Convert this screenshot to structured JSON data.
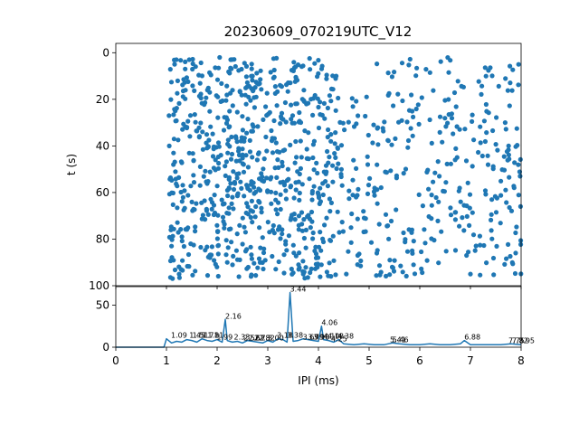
{
  "chart_data": [
    {
      "type": "scatter",
      "title": "20230609_070219UTC_V12",
      "xlabel": "",
      "ylabel": "t (s)",
      "xlim": [
        0,
        8
      ],
      "ylim": [
        100,
        -4
      ],
      "y_inverted": true,
      "y_ticks": [
        0,
        20,
        40,
        60,
        80,
        100
      ],
      "x_tick_labels_shown": false,
      "grid": false,
      "color": "#1f77b4",
      "dense_regions": [
        {
          "x_range": [
            1.05,
            4.4
          ],
          "y_range": [
            2,
            97
          ],
          "count": 720
        },
        {
          "x_range": [
            4.4,
            8.0
          ],
          "y_range": [
            2,
            96
          ],
          "count": 330
        }
      ],
      "sample_points": [
        {
          "x": 1.05,
          "y": 27
        },
        {
          "x": 1.1,
          "y": 83
        },
        {
          "x": 1.15,
          "y": 37
        },
        {
          "x": 1.25,
          "y": 95
        },
        {
          "x": 1.45,
          "y": 3
        },
        {
          "x": 2.05,
          "y": 2
        },
        {
          "x": 2.2,
          "y": 90
        },
        {
          "x": 3.4,
          "y": 50
        },
        {
          "x": 3.7,
          "y": 95
        },
        {
          "x": 4.35,
          "y": 10
        },
        {
          "x": 4.55,
          "y": 95
        },
        {
          "x": 5.85,
          "y": 85
        },
        {
          "x": 7.0,
          "y": 95
        },
        {
          "x": 7.95,
          "y": 5
        },
        {
          "x": 7.98,
          "y": 53
        }
      ]
    },
    {
      "type": "line",
      "title": "",
      "xlabel": "IPI (ms)",
      "ylabel": "",
      "xlim": [
        0,
        8
      ],
      "ylim": [
        0,
        72
      ],
      "x_ticks": [
        0,
        1,
        2,
        3,
        4,
        5,
        6,
        7,
        8
      ],
      "y_ticks": [
        0,
        50
      ],
      "grid": false,
      "color": "#1f77b4",
      "series": [
        {
          "x": [
            0,
            0.95,
            1.0,
            1.1,
            1.2,
            1.3,
            1.4,
            1.5,
            1.6,
            1.7,
            1.8,
            1.9,
            2.0,
            2.1,
            2.16,
            2.2,
            2.3,
            2.4,
            2.5,
            2.6,
            2.7,
            2.8,
            2.9,
            3.0,
            3.1,
            3.2,
            3.3,
            3.38,
            3.44,
            3.5,
            3.6,
            3.7,
            3.8,
            3.9,
            4.0,
            4.06,
            4.1,
            4.2,
            4.3,
            4.4,
            4.5,
            4.7,
            4.9,
            5.1,
            5.3,
            5.46,
            5.6,
            5.8,
            6.0,
            6.2,
            6.4,
            6.6,
            6.8,
            6.88,
            7.0,
            7.2,
            7.4,
            7.6,
            7.8,
            8.0
          ],
          "y": [
            0,
            0,
            10,
            5,
            7,
            6,
            9,
            8,
            6,
            10,
            8,
            7,
            9,
            6,
            33,
            8,
            6,
            7,
            5,
            8,
            7,
            6,
            5,
            8,
            6,
            10,
            9,
            6,
            65,
            7,
            8,
            10,
            9,
            8,
            7,
            25,
            9,
            8,
            6,
            9,
            4,
            3,
            4,
            3,
            3,
            5,
            4,
            3,
            3,
            4,
            3,
            3,
            4,
            8,
            3,
            3,
            3,
            3,
            4,
            3
          ]
        }
      ],
      "peak_labels": [
        {
          "x": 1.09,
          "y": 10,
          "text": "1.09"
        },
        {
          "x": 1.45,
          "y": 10,
          "text": "1.45"
        },
        {
          "x": 1.51,
          "y": 10,
          "text": "1.51"
        },
        {
          "x": 1.71,
          "y": 10,
          "text": "1.71"
        },
        {
          "x": 1.81,
          "y": 10,
          "text": "1.81"
        },
        {
          "x": 1.99,
          "y": 8,
          "text": "1.99"
        },
        {
          "x": 2.16,
          "y": 33,
          "text": "2.16"
        },
        {
          "x": 2.33,
          "y": 8,
          "text": "2.33"
        },
        {
          "x": 2.52,
          "y": 7,
          "text": "2.52"
        },
        {
          "x": 2.62,
          "y": 7,
          "text": "2.62"
        },
        {
          "x": 2.73,
          "y": 7,
          "text": "2.73"
        },
        {
          "x": 2.82,
          "y": 7,
          "text": "2.82"
        },
        {
          "x": 3.0,
          "y": 7,
          "text": "3.00"
        },
        {
          "x": 3.18,
          "y": 10,
          "text": "3.18"
        },
        {
          "x": 3.38,
          "y": 10,
          "text": "3.38"
        },
        {
          "x": 3.44,
          "y": 65,
          "text": "3.44"
        },
        {
          "x": 3.69,
          "y": 8,
          "text": "3.69"
        },
        {
          "x": 3.79,
          "y": 8,
          "text": "3.79"
        },
        {
          "x": 3.9,
          "y": 8,
          "text": "3.90"
        },
        {
          "x": 4.06,
          "y": 25,
          "text": "4.06"
        },
        {
          "x": 4.1,
          "y": 9,
          "text": "4.10"
        },
        {
          "x": 4.18,
          "y": 9,
          "text": "4.18"
        },
        {
          "x": 4.25,
          "y": 6,
          "text": "4.25"
        },
        {
          "x": 4.38,
          "y": 9,
          "text": "4.38"
        },
        {
          "x": 5.41,
          "y": 5,
          "text": "5.41"
        },
        {
          "x": 5.46,
          "y": 5,
          "text": "5.46"
        },
        {
          "x": 6.88,
          "y": 8,
          "text": "6.88"
        },
        {
          "x": 7.75,
          "y": 4,
          "text": "7.75"
        },
        {
          "x": 7.82,
          "y": 4,
          "text": "7.82"
        },
        {
          "x": 7.95,
          "y": 4,
          "text": "7.95"
        }
      ]
    }
  ]
}
